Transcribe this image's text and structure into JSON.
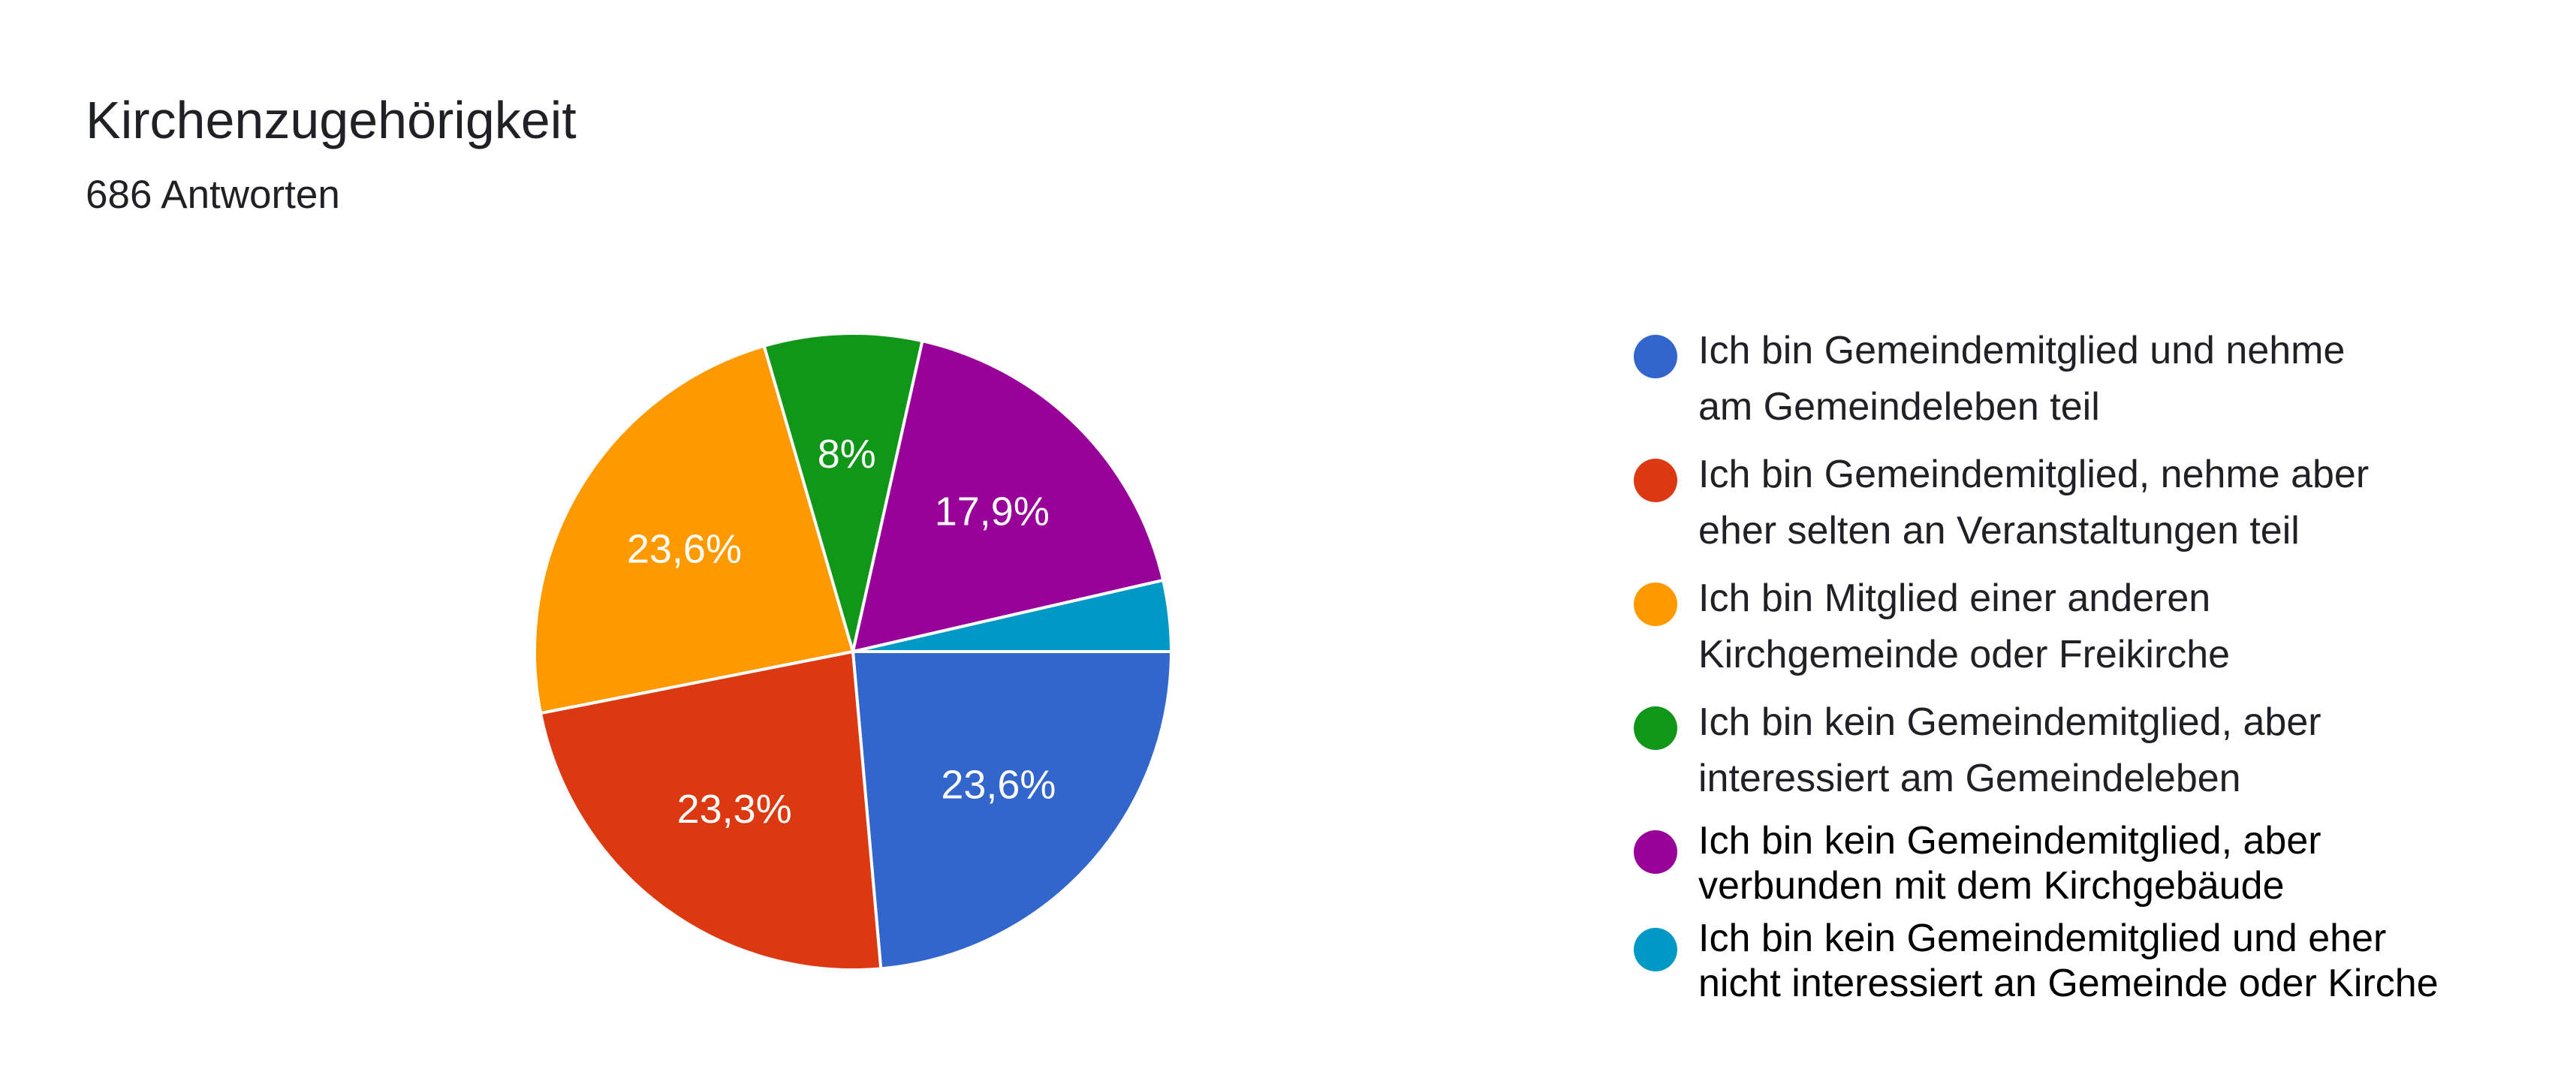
{
  "header": {
    "title": "Kirchenzugehörigkeit",
    "subtitle": "686 Antworten"
  },
  "legend": {
    "items": [
      {
        "line1": "Ich bin Gemeindemitglied und nehme",
        "line2": "am Gemeindeleben teil",
        "color": "#3366CC"
      },
      {
        "line1": "Ich bin Gemeindemitglied, nehme aber",
        "line2": "eher selten an Veranstaltungen teil",
        "color": "#DC3912"
      },
      {
        "line1": "Ich bin Mitglied einer anderen",
        "line2": "Kirchgemeinde oder Freikirche",
        "color": "#FF9900"
      },
      {
        "line1": "Ich bin kein Gemeindemitglied, aber",
        "line2": "interessiert am Gemeindeleben",
        "color": "#109618"
      },
      {
        "line1": "Ich bin kein Gemeindemitglied, aber",
        "line2": "verbunden mit dem Kirchgebäude",
        "color": "#990099"
      },
      {
        "line1": "Ich bin kein Gemeindemitglied und eher",
        "line2": "nicht interessiert an Gemeinde oder Kirche",
        "color": "#0099C6"
      }
    ]
  },
  "chart_data": {
    "type": "pie",
    "title": "Kirchenzugehörigkeit",
    "subtitle": "686 Antworten",
    "slices": [
      {
        "label": "Ich bin Gemeindemitglied und nehme am Gemeindeleben teil",
        "value": 23.6,
        "display": "23,6%",
        "color": "#3366CC"
      },
      {
        "label": "Ich bin Gemeindemitglied, nehme aber eher selten an Veranstaltungen teil",
        "value": 23.3,
        "display": "23,3%",
        "color": "#DC3912"
      },
      {
        "label": "Ich bin Mitglied einer anderen Kirchgemeinde oder Freikirche",
        "value": 23.6,
        "display": "23,6%",
        "color": "#FF9900"
      },
      {
        "label": "Ich bin kein Gemeindemitglied, aber interessiert am Gemeindeleben",
        "value": 8.0,
        "display": "8%",
        "color": "#109618"
      },
      {
        "label": "Ich bin kein Gemeindemitglied, aber verbunden mit dem Kirchgebäude",
        "value": 17.9,
        "display": "17,9%",
        "color": "#990099"
      },
      {
        "label": "Ich bin kein Gemeindemitglied und eher nicht interessiert an Gemeinde oder Kirche",
        "value": 3.6,
        "display": "",
        "color": "#0099C6"
      }
    ],
    "legend_position": "right"
  }
}
